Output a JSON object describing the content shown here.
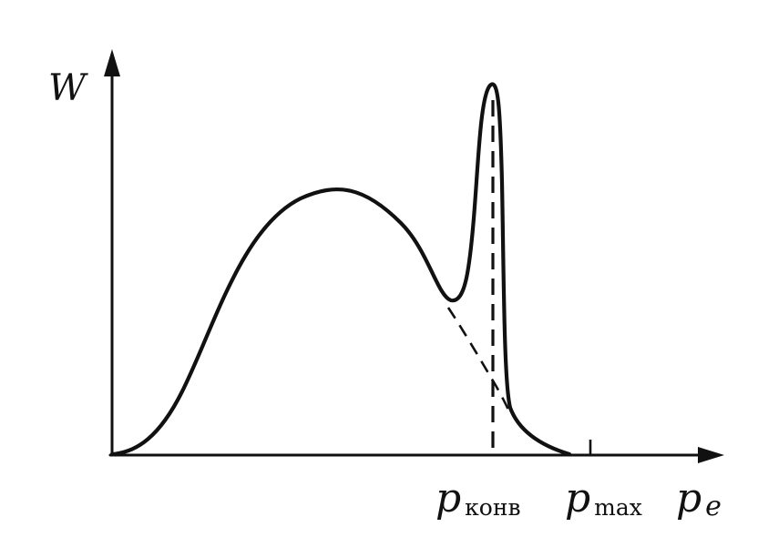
{
  "diagram": {
    "y_axis_label": "W",
    "x_axis_label": "p",
    "x_axis_subscript": "e",
    "tick_labels": [
      {
        "symbol": "p",
        "subscript": "конв"
      },
      {
        "symbol": "p",
        "subscript": "max"
      }
    ]
  }
}
